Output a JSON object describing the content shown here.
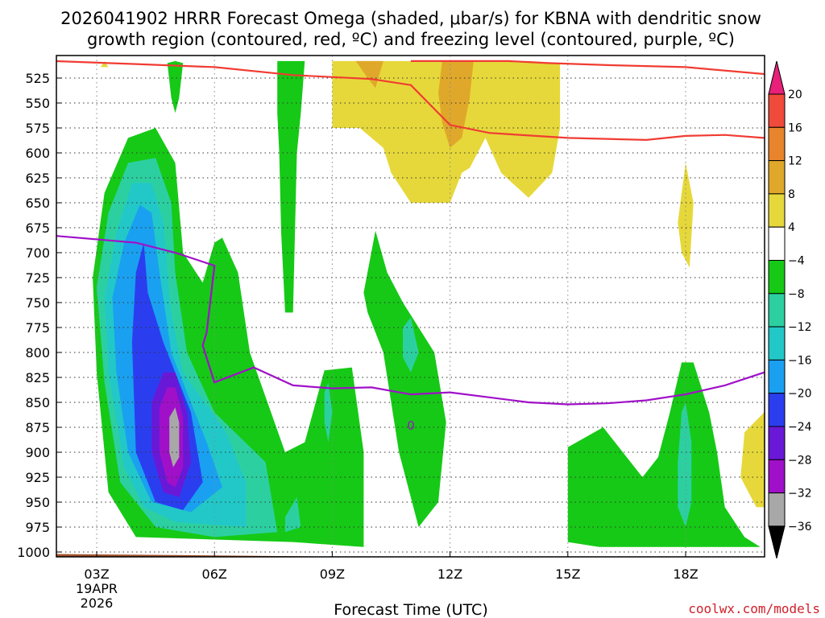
{
  "chart_data": {
    "type": "time-height-contour",
    "title_line1": "2026041902 HRRR Forecast Omega (shaded, μbar/s) for KBNA with dendritic snow",
    "title_line2": "growth region (contoured, red, ºC) and freezing level (contoured, purple, ºC)",
    "xlabel": "Forecast Time (UTC)",
    "credit": "coolwx.com/models",
    "x_range_hours": [
      2,
      20
    ],
    "y_range_mb": [
      1010,
      510
    ],
    "x_ticks": [
      {
        "hour": 3,
        "label": "03Z",
        "sub1": "19APR",
        "sub2": "2026"
      },
      {
        "hour": 6,
        "label": "06Z"
      },
      {
        "hour": 9,
        "label": "09Z"
      },
      {
        "hour": 12,
        "label": "12Z"
      },
      {
        "hour": 15,
        "label": "15Z"
      },
      {
        "hour": 18,
        "label": "18Z"
      }
    ],
    "y_ticks": [
      525,
      550,
      575,
      600,
      625,
      650,
      675,
      700,
      725,
      750,
      775,
      800,
      825,
      850,
      875,
      900,
      925,
      950,
      975,
      1000
    ],
    "colorbar": {
      "labels": [
        "20",
        "16",
        "12",
        "8",
        "4",
        "−4",
        "−8",
        "−12",
        "−16",
        "−20",
        "−24",
        "−28",
        "−32",
        "−36"
      ],
      "bins": [
        {
          "lo": 16,
          "hi": 20,
          "color": "#f04a3a"
        },
        {
          "lo": 12,
          "hi": 16,
          "color": "#e8842c"
        },
        {
          "lo": 8,
          "hi": 12,
          "color": "#e0a82a"
        },
        {
          "lo": 4,
          "hi": 8,
          "color": "#e6d83a"
        },
        {
          "lo": -4,
          "hi": 4,
          "color": "#ffffff"
        },
        {
          "lo": -8,
          "hi": -4,
          "color": "#16c916"
        },
        {
          "lo": -12,
          "hi": -8,
          "color": "#2cd0a0"
        },
        {
          "lo": -16,
          "hi": -12,
          "color": "#22c8c8"
        },
        {
          "lo": -20,
          "hi": -16,
          "color": "#1aa0f0"
        },
        {
          "lo": -24,
          "hi": -20,
          "color": "#2a3ef0"
        },
        {
          "lo": -28,
          "hi": -24,
          "color": "#6a18d8"
        },
        {
          "lo": -32,
          "hi": -28,
          "color": "#a010c8"
        },
        {
          "lo": -36,
          "hi": -32,
          "color": "#a8a8a8"
        }
      ],
      "top_color": "#e8207a",
      "bottom_color": "#000000"
    },
    "dgz_color": "#f03c32",
    "freezing_color": "#a010c8",
    "terrain_color": "#a0522d",
    "freezing_label": "0",
    "dgz_upper": [
      [
        1.9,
        508
      ],
      [
        4,
        511
      ],
      [
        6,
        514
      ],
      [
        8,
        522
      ],
      [
        10,
        526
      ],
      [
        11,
        532
      ],
      [
        12,
        572
      ],
      [
        13,
        580
      ],
      [
        15,
        585
      ],
      [
        17,
        587
      ],
      [
        18,
        583
      ],
      [
        19,
        582
      ],
      [
        20,
        585
      ]
    ],
    "dgz_top": [
      [
        11,
        508
      ],
      [
        13.5,
        508
      ],
      [
        14.5,
        510
      ],
      [
        16,
        512
      ],
      [
        18,
        514
      ],
      [
        20,
        521
      ]
    ],
    "freezing_level": [
      [
        1.9,
        683
      ],
      [
        4,
        690
      ],
      [
        5,
        700
      ],
      [
        6,
        713
      ],
      [
        5.8,
        780
      ],
      [
        5.7,
        793
      ],
      [
        6,
        830
      ],
      [
        7,
        815
      ],
      [
        8,
        833
      ],
      [
        9,
        836
      ],
      [
        10,
        835
      ],
      [
        11,
        842
      ],
      [
        12,
        840
      ],
      [
        13,
        845
      ],
      [
        14,
        850
      ],
      [
        15,
        852
      ],
      [
        16,
        851
      ],
      [
        17,
        848
      ],
      [
        18,
        842
      ],
      [
        19,
        833
      ],
      [
        20,
        820
      ]
    ],
    "omega_regions": [
      {
        "value": -6,
        "poly": [
          [
            2.9,
            725
          ],
          [
            3.2,
            640
          ],
          [
            3.8,
            585
          ],
          [
            4.5,
            575
          ],
          [
            5,
            610
          ],
          [
            5.2,
            700
          ],
          [
            5.7,
            730
          ],
          [
            6,
            690
          ],
          [
            6.2,
            685
          ],
          [
            6.6,
            720
          ],
          [
            6.9,
            800
          ],
          [
            7.8,
            900
          ],
          [
            8.3,
            890
          ],
          [
            8.8,
            818
          ],
          [
            9.5,
            815
          ],
          [
            9.8,
            900
          ],
          [
            9.8,
            995
          ],
          [
            8,
            990
          ],
          [
            4,
            985
          ],
          [
            3.3,
            940
          ],
          [
            3,
            820
          ]
        ]
      },
      {
        "value": -10,
        "poly": [
          [
            3.0,
            735
          ],
          [
            3.3,
            660
          ],
          [
            3.8,
            610
          ],
          [
            4.5,
            605
          ],
          [
            4.9,
            650
          ],
          [
            5,
            720
          ],
          [
            5.3,
            800
          ],
          [
            6,
            860
          ],
          [
            7.3,
            910
          ],
          [
            7.6,
            980
          ],
          [
            6,
            985
          ],
          [
            4.5,
            975
          ],
          [
            3.6,
            930
          ],
          [
            3.2,
            830
          ]
        ]
      },
      {
        "value": -14,
        "poly": [
          [
            3.2,
            745
          ],
          [
            3.5,
            680
          ],
          [
            3.9,
            630
          ],
          [
            4.4,
            630
          ],
          [
            4.7,
            670
          ],
          [
            4.9,
            760
          ],
          [
            5.2,
            820
          ],
          [
            6.3,
            880
          ],
          [
            6.8,
            930
          ],
          [
            6.8,
            975
          ],
          [
            5,
            970
          ],
          [
            4.2,
            955
          ],
          [
            3.7,
            915
          ],
          [
            3.3,
            820
          ]
        ]
      },
      {
        "value": -18,
        "poly": [
          [
            3.4,
            745
          ],
          [
            3.7,
            690
          ],
          [
            4.1,
            652
          ],
          [
            4.4,
            660
          ],
          [
            4.6,
            720
          ],
          [
            4.9,
            800
          ],
          [
            5.8,
            890
          ],
          [
            6.2,
            935
          ],
          [
            5.4,
            960
          ],
          [
            4.4,
            950
          ],
          [
            3.8,
            900
          ],
          [
            3.5,
            820
          ]
        ]
      },
      {
        "value": -22,
        "poly": [
          [
            3.9,
            790
          ],
          [
            4.0,
            720
          ],
          [
            4.2,
            690
          ],
          [
            4.3,
            740
          ],
          [
            4.7,
            790
          ],
          [
            5.4,
            860
          ],
          [
            5.7,
            930
          ],
          [
            5.2,
            958
          ],
          [
            4.5,
            950
          ],
          [
            4.0,
            900
          ]
        ]
      },
      {
        "value": -26,
        "poly": [
          [
            4.4,
            850
          ],
          [
            4.7,
            820
          ],
          [
            5.0,
            820
          ],
          [
            5.3,
            860
          ],
          [
            5.4,
            910
          ],
          [
            5.1,
            945
          ],
          [
            4.7,
            940
          ],
          [
            4.4,
            900
          ]
        ]
      },
      {
        "value": -30,
        "poly": [
          [
            4.6,
            855
          ],
          [
            4.8,
            835
          ],
          [
            5.0,
            835
          ],
          [
            5.2,
            865
          ],
          [
            5.2,
            915
          ],
          [
            5.0,
            935
          ],
          [
            4.8,
            930
          ],
          [
            4.6,
            900
          ]
        ]
      },
      {
        "value": -34,
        "poly": [
          [
            4.85,
            865
          ],
          [
            5.0,
            855
          ],
          [
            5.1,
            870
          ],
          [
            5.1,
            905
          ],
          [
            4.95,
            915
          ],
          [
            4.85,
            900
          ]
        ]
      },
      {
        "value": -6,
        "poly": [
          [
            5,
            508
          ],
          [
            5.2,
            510
          ],
          [
            5.1,
            545
          ],
          [
            5,
            560
          ],
          [
            4.9,
            545
          ],
          [
            4.8,
            510
          ]
        ]
      },
      {
        "value": -6,
        "poly": [
          [
            7.6,
            508
          ],
          [
            8.3,
            508
          ],
          [
            8.2,
            560
          ],
          [
            8.1,
            600
          ],
          [
            8.05,
            680
          ],
          [
            8,
            760
          ],
          [
            7.8,
            760
          ],
          [
            7.7,
            680
          ],
          [
            7.65,
            600
          ],
          [
            7.6,
            560
          ]
        ]
      },
      {
        "value": -6,
        "poly": [
          [
            9.8,
            740
          ],
          [
            10.1,
            678
          ],
          [
            10.4,
            720
          ],
          [
            10.8,
            750
          ],
          [
            11.6,
            800
          ],
          [
            11.9,
            870
          ],
          [
            11.7,
            950
          ],
          [
            11.2,
            975
          ],
          [
            10.7,
            900
          ],
          [
            10.3,
            800
          ],
          [
            9.9,
            760
          ]
        ]
      },
      {
        "value": -10,
        "poly": [
          [
            10.8,
            775
          ],
          [
            11,
            765
          ],
          [
            11.2,
            800
          ],
          [
            11,
            820
          ],
          [
            10.8,
            805
          ]
        ]
      },
      {
        "value": -10,
        "poly": [
          [
            8.8,
            840
          ],
          [
            8.9,
            830
          ],
          [
            9.0,
            860
          ],
          [
            8.9,
            890
          ],
          [
            8.8,
            870
          ]
        ]
      },
      {
        "value": -10,
        "poly": [
          [
            7.8,
            965
          ],
          [
            8.1,
            945
          ],
          [
            8.2,
            975
          ],
          [
            7.8,
            980
          ]
        ]
      },
      {
        "value": -6,
        "poly": [
          [
            15,
            895
          ],
          [
            15.9,
            875
          ],
          [
            16.9,
            925
          ],
          [
            17.3,
            905
          ],
          [
            17.6,
            860
          ],
          [
            17.9,
            810
          ],
          [
            18.2,
            810
          ],
          [
            18.6,
            860
          ],
          [
            18.8,
            900
          ],
          [
            19,
            955
          ],
          [
            19.5,
            985
          ],
          [
            19.9,
            995
          ],
          [
            15.8,
            995
          ],
          [
            15,
            990
          ]
        ]
      },
      {
        "value": -10,
        "poly": [
          [
            17.8,
            910
          ],
          [
            17.9,
            860
          ],
          [
            18.0,
            850
          ],
          [
            18.15,
            890
          ],
          [
            18.15,
            950
          ],
          [
            18.0,
            975
          ],
          [
            17.8,
            955
          ]
        ]
      },
      {
        "value": 6,
        "poly": [
          [
            9,
            508
          ],
          [
            14,
            508
          ],
          [
            14.8,
            510
          ],
          [
            14.8,
            575
          ],
          [
            14.6,
            620
          ],
          [
            14,
            645
          ],
          [
            13.3,
            620
          ],
          [
            12.9,
            585
          ],
          [
            12.5,
            615
          ],
          [
            12.3,
            620
          ],
          [
            12,
            650
          ],
          [
            11,
            650
          ],
          [
            10.5,
            620
          ],
          [
            10.3,
            595
          ],
          [
            9.7,
            575
          ],
          [
            9,
            575
          ]
        ]
      },
      {
        "value": 10,
        "poly": [
          [
            9.6,
            508
          ],
          [
            10.3,
            508
          ],
          [
            10.1,
            535
          ],
          [
            9.9,
            525
          ]
        ]
      },
      {
        "value": 10,
        "poly": [
          [
            11.8,
            508
          ],
          [
            12.6,
            508
          ],
          [
            12.5,
            545
          ],
          [
            12.3,
            585
          ],
          [
            12,
            595
          ],
          [
            11.8,
            570
          ],
          [
            11.7,
            540
          ]
        ]
      },
      {
        "value": 6,
        "poly": [
          [
            17.9,
            640
          ],
          [
            18.0,
            610
          ],
          [
            18.2,
            650
          ],
          [
            18.1,
            715
          ],
          [
            17.9,
            700
          ],
          [
            17.8,
            670
          ]
        ]
      },
      {
        "value": 6,
        "poly": [
          [
            20,
            860
          ],
          [
            19.5,
            880
          ],
          [
            19.4,
            925
          ],
          [
            19.8,
            955
          ],
          [
            20,
            955
          ]
        ]
      },
      {
        "value": 6,
        "poly": [
          [
            3.2,
            508
          ],
          [
            3.3,
            514
          ],
          [
            3.1,
            514
          ]
        ]
      }
    ],
    "terrain": [
      [
        1.9,
        1002
      ],
      [
        5,
        1003
      ],
      [
        10,
        1005
      ],
      [
        13,
        1006
      ],
      [
        15,
        1007
      ],
      [
        16,
        1010
      ],
      [
        20,
        1010
      ],
      [
        20,
        1014
      ],
      [
        1.9,
        1014
      ]
    ]
  }
}
